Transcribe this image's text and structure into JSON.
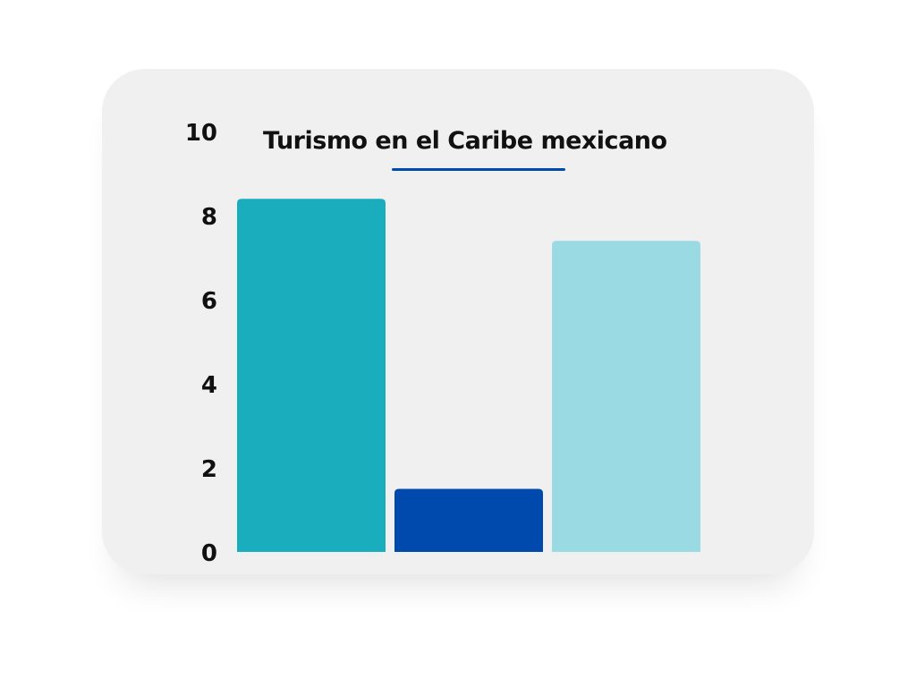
{
  "chart_data": {
    "type": "bar",
    "title": "Turismo en el Caribe mexicano",
    "xlabel": "",
    "ylabel": "",
    "categories": [
      "",
      "",
      ""
    ],
    "values": [
      8.4,
      1.5,
      7.4
    ],
    "colors": [
      "#19adbd",
      "#004aad",
      "#9adbe3"
    ],
    "ylim": [
      0,
      10
    ],
    "yticks": [
      0,
      2,
      4,
      6,
      8,
      10
    ],
    "grid": false,
    "accent": "#004aad"
  }
}
